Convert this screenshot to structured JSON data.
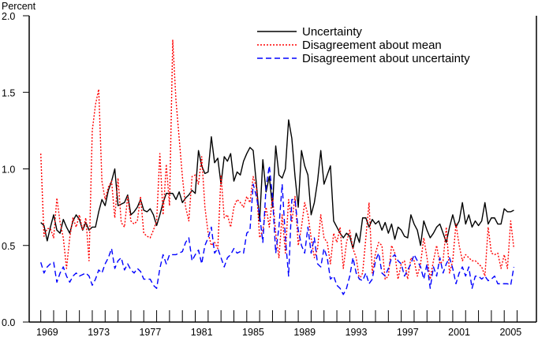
{
  "chart_data": {
    "type": "line",
    "ylabel": "Percent",
    "xlim": [
      1968.1,
      2007.5
    ],
    "ylim": [
      0,
      2.0
    ],
    "yticks": [
      "0.0",
      "0.5",
      "1.0",
      "1.5",
      "2.0"
    ],
    "xtick_labels": [
      "1969",
      "1973",
      "1977",
      "1981",
      "1985",
      "1989",
      "1993",
      "1997",
      "2001",
      "2005"
    ],
    "minor_xticks": "yearly",
    "grid": false,
    "legend_position": "top-right",
    "start": "1969Q1",
    "frequency": "quarterly",
    "series": [
      {
        "name": "Uncertainty",
        "color": "#000000",
        "style": "solid",
        "values": [
          0.65,
          0.63,
          0.53,
          0.62,
          0.7,
          0.6,
          0.58,
          0.67,
          0.62,
          0.58,
          0.66,
          0.7,
          0.67,
          0.6,
          0.65,
          0.6,
          0.62,
          0.62,
          0.72,
          0.8,
          0.76,
          0.86,
          0.92,
          1.0,
          0.76,
          0.77,
          0.78,
          0.83,
          0.7,
          0.72,
          0.75,
          0.8,
          0.73,
          0.72,
          0.74,
          0.7,
          0.63,
          0.7,
          0.78,
          0.84,
          0.84,
          0.84,
          0.8,
          0.85,
          0.78,
          0.81,
          0.83,
          0.86,
          0.84,
          1.12,
          1.02,
          0.97,
          0.98,
          1.21,
          1.04,
          1.07,
          0.9,
          1.08,
          1.05,
          1.1,
          0.92,
          0.98,
          0.96,
          1.05,
          1.1,
          1.14,
          1.12,
          0.9,
          0.66,
          1.06,
          0.85,
          0.95,
          0.75,
          1.15,
          0.96,
          0.94,
          1.0,
          1.32,
          1.2,
          0.95,
          0.75,
          1.12,
          1.02,
          0.96,
          0.7,
          0.78,
          0.92,
          1.12,
          0.9,
          0.96,
          1.02,
          0.66,
          0.62,
          0.58,
          0.55,
          0.58,
          0.56,
          0.48,
          0.58,
          0.52,
          0.68,
          0.68,
          0.62,
          0.67,
          0.64,
          0.66,
          0.6,
          0.65,
          0.58,
          0.64,
          0.54,
          0.62,
          0.6,
          0.56,
          0.55,
          0.7,
          0.64,
          0.6,
          0.5,
          0.66,
          0.6,
          0.55,
          0.58,
          0.62,
          0.64,
          0.58,
          0.52,
          0.62,
          0.7,
          0.62,
          0.66,
          0.78,
          0.64,
          0.7,
          0.62,
          0.66,
          0.63,
          0.66,
          0.78,
          0.64,
          0.68,
          0.68,
          0.64,
          0.64,
          0.74,
          0.72,
          0.72,
          0.73
        ]
      },
      {
        "name": "Disagreement about mean",
        "color": "#ff0000",
        "style": "dotted",
        "values": [
          1.1,
          0.56,
          0.61,
          0.61,
          0.55,
          0.81,
          0.65,
          0.55,
          0.35,
          0.55,
          0.68,
          0.62,
          0.7,
          0.6,
          0.68,
          0.4,
          1.25,
          1.42,
          1.52,
          0.92,
          0.8,
          0.88,
          0.92,
          0.68,
          0.94,
          0.65,
          0.62,
          0.82,
          0.66,
          0.64,
          0.66,
          0.82,
          0.58,
          0.56,
          0.55,
          0.6,
          0.66,
          1.1,
          0.7,
          1.03,
          0.76,
          1.84,
          1.45,
          1.2,
          0.95,
          0.75,
          0.66,
          0.95,
          0.96,
          0.9,
          1.08,
          0.75,
          0.58,
          0.5,
          0.52,
          0.48,
          0.96,
          0.68,
          0.7,
          0.62,
          0.75,
          0.8,
          0.78,
          0.75,
          0.82,
          0.78,
          0.95,
          0.88,
          0.55,
          0.6,
          0.75,
          0.62,
          0.82,
          0.58,
          0.42,
          0.7,
          0.45,
          0.8,
          0.65,
          0.82,
          0.5,
          0.62,
          0.78,
          0.7,
          0.55,
          0.42,
          0.48,
          0.7,
          0.55,
          0.52,
          0.38,
          0.58,
          0.52,
          0.62,
          0.35,
          0.52,
          0.6,
          0.48,
          0.42,
          0.28,
          0.32,
          0.55,
          0.78,
          0.32,
          0.45,
          0.52,
          0.5,
          0.28,
          0.3,
          0.5,
          0.45,
          0.28,
          0.38,
          0.4,
          0.28,
          0.42,
          0.4,
          0.3,
          0.38,
          0.55,
          0.42,
          0.28,
          0.4,
          0.5,
          0.38,
          0.4,
          0.62,
          0.32,
          0.4,
          0.64,
          0.5,
          0.4,
          0.44,
          0.42,
          0.4,
          0.4,
          0.38,
          0.36,
          0.3,
          0.62,
          0.45,
          0.44,
          0.45,
          0.35,
          0.44,
          0.35,
          0.66,
          0.48
        ]
      },
      {
        "name": "Disagreement about uncertainty",
        "color": "#0000ff",
        "style": "dashed",
        "values": [
          0.39,
          0.32,
          0.36,
          0.38,
          0.39,
          0.26,
          0.32,
          0.36,
          0.3,
          0.26,
          0.3,
          0.32,
          0.3,
          0.31,
          0.32,
          0.3,
          0.24,
          0.28,
          0.34,
          0.32,
          0.38,
          0.42,
          0.48,
          0.35,
          0.4,
          0.42,
          0.34,
          0.38,
          0.34,
          0.32,
          0.35,
          0.33,
          0.28,
          0.28,
          0.28,
          0.24,
          0.22,
          0.35,
          0.44,
          0.38,
          0.44,
          0.44,
          0.44,
          0.45,
          0.46,
          0.52,
          0.55,
          0.4,
          0.44,
          0.47,
          0.38,
          0.5,
          0.55,
          0.62,
          0.45,
          0.48,
          0.42,
          0.36,
          0.42,
          0.44,
          0.48,
          0.45,
          0.46,
          0.45,
          0.58,
          0.6,
          0.9,
          0.82,
          0.7,
          0.52,
          0.88,
          1.02,
          0.82,
          0.45,
          0.62,
          0.9,
          0.55,
          0.3,
          0.8,
          0.8,
          0.6,
          0.5,
          0.45,
          0.62,
          0.45,
          0.55,
          0.38,
          0.36,
          0.48,
          0.42,
          0.28,
          0.3,
          0.24,
          0.22,
          0.18,
          0.22,
          0.3,
          0.42,
          0.32,
          0.28,
          0.27,
          0.32,
          0.25,
          0.28,
          0.4,
          0.45,
          0.32,
          0.3,
          0.35,
          0.42,
          0.44,
          0.4,
          0.38,
          0.3,
          0.34,
          0.38,
          0.44,
          0.4,
          0.36,
          0.28,
          0.38,
          0.22,
          0.36,
          0.3,
          0.42,
          0.32,
          0.38,
          0.42,
          0.35,
          0.25,
          0.32,
          0.36,
          0.3,
          0.36,
          0.22,
          0.3,
          0.3,
          0.28,
          0.3,
          0.27,
          0.28,
          0.3,
          0.25,
          0.25,
          0.25,
          0.25,
          0.24,
          0.36
        ]
      }
    ]
  }
}
